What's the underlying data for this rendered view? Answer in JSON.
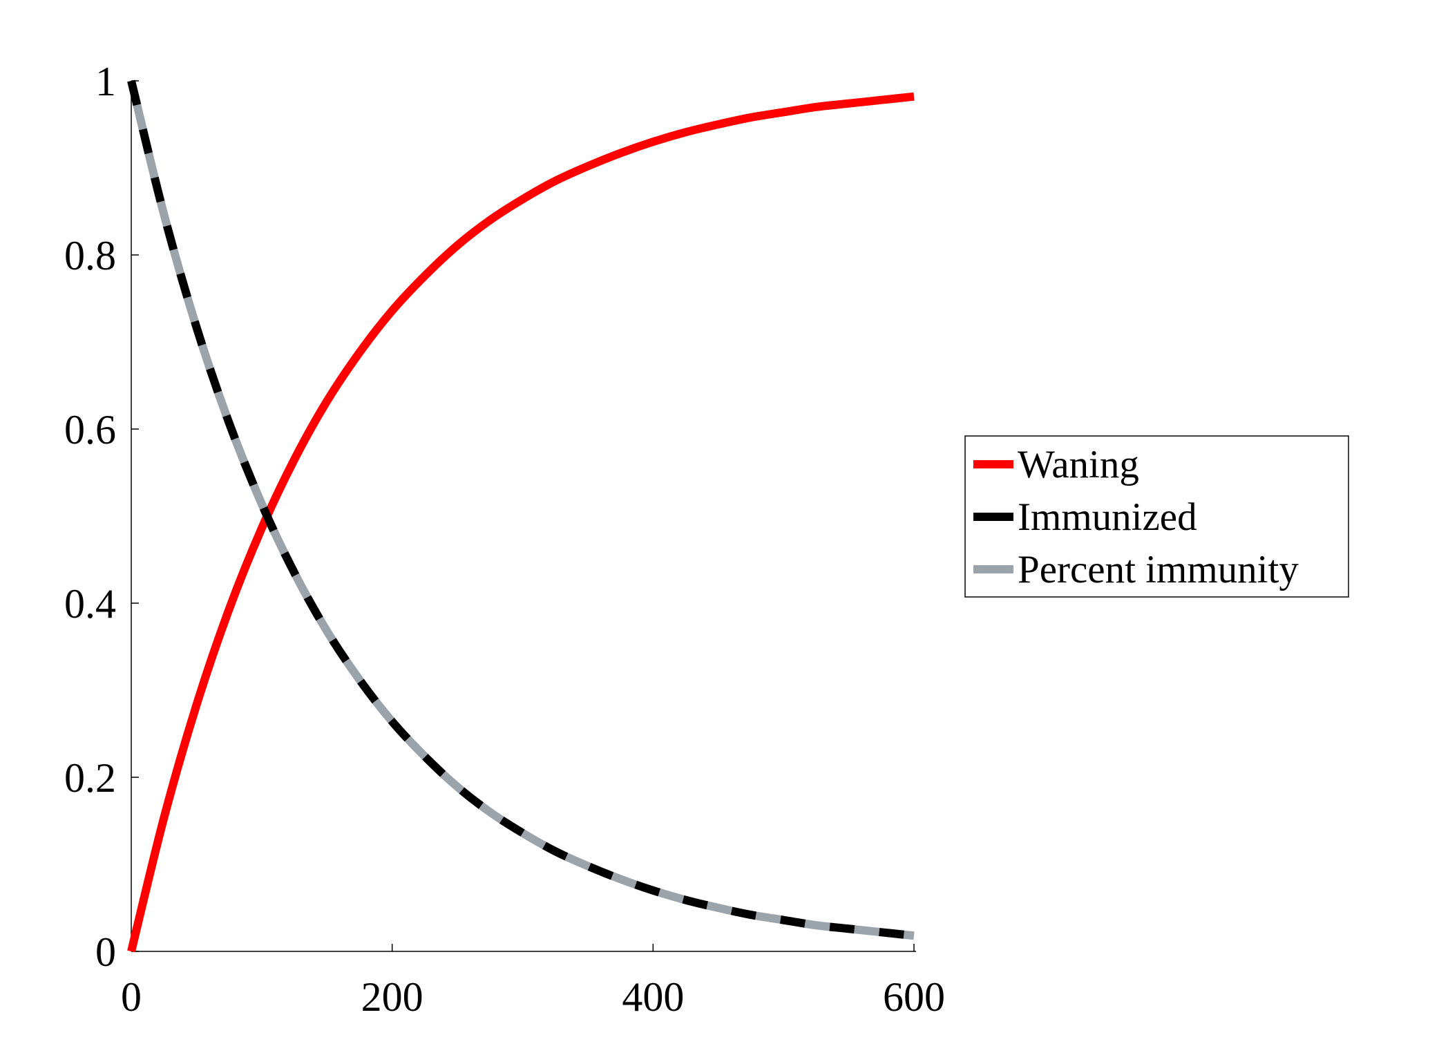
{
  "chart_data": {
    "type": "line",
    "title": "",
    "xlabel": "",
    "ylabel": "",
    "xlim": [
      0,
      600
    ],
    "ylim": [
      0,
      1
    ],
    "x_ticks": [
      0,
      200,
      400,
      600
    ],
    "y_ticks": [
      0,
      0.2,
      0.4,
      0.6,
      0.8,
      1
    ],
    "x_tick_labels": [
      "0",
      "200",
      "400",
      "600"
    ],
    "y_tick_labels": [
      "0",
      "0.2",
      "0.4",
      "0.6",
      "0.8",
      "1"
    ],
    "grid": false,
    "legend_position": "right",
    "x": [
      0,
      25,
      50,
      75,
      100,
      125,
      150,
      175,
      200,
      225,
      250,
      275,
      300,
      325,
      350,
      375,
      400,
      425,
      450,
      475,
      500,
      525,
      550,
      575,
      600
    ],
    "series": [
      {
        "name": "Waning",
        "color": "#ff0000",
        "style": "solid",
        "values": [
          0.0,
          0.153,
          0.283,
          0.393,
          0.486,
          0.565,
          0.632,
          0.688,
          0.736,
          0.776,
          0.811,
          0.84,
          0.864,
          0.885,
          0.902,
          0.917,
          0.93,
          0.941,
          0.95,
          0.958,
          0.964,
          0.97,
          0.974,
          0.978,
          0.982
        ]
      },
      {
        "name": "Immunized",
        "color": "#000000",
        "style": "dashed",
        "values": [
          1.0,
          0.847,
          0.717,
          0.607,
          0.514,
          0.435,
          0.368,
          0.312,
          0.264,
          0.224,
          0.189,
          0.16,
          0.136,
          0.115,
          0.098,
          0.083,
          0.07,
          0.059,
          0.05,
          0.042,
          0.036,
          0.03,
          0.026,
          0.022,
          0.018
        ]
      },
      {
        "name": "Percent immunity",
        "color": "#9ba3ab",
        "style": "dashed",
        "values": [
          1.0,
          0.847,
          0.717,
          0.607,
          0.514,
          0.435,
          0.368,
          0.312,
          0.264,
          0.224,
          0.189,
          0.16,
          0.136,
          0.115,
          0.098,
          0.083,
          0.07,
          0.059,
          0.05,
          0.042,
          0.036,
          0.03,
          0.026,
          0.022,
          0.018
        ]
      }
    ]
  }
}
